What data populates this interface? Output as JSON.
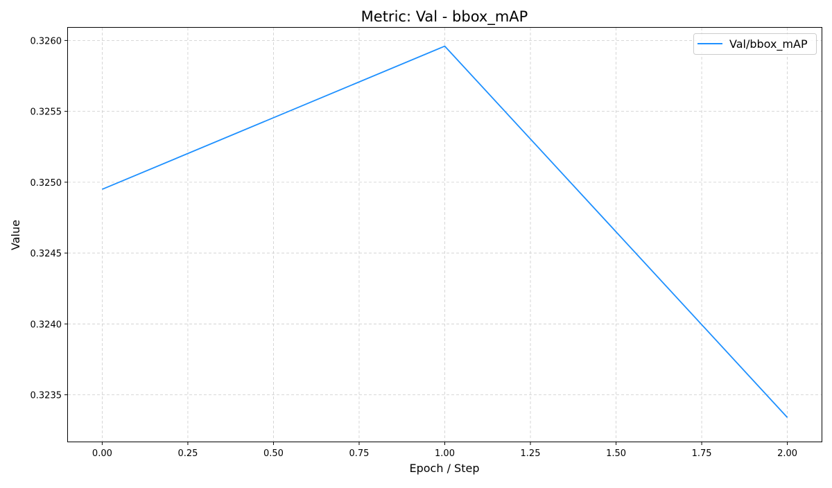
{
  "chart_data": {
    "type": "line",
    "title": "Metric: Val - bbox_mAP",
    "xlabel": "Epoch / Step",
    "ylabel": "Value",
    "xlim": [
      -0.1,
      2.1
    ],
    "ylim": [
      0.32317,
      0.32609
    ],
    "xticks": [
      0.0,
      0.25,
      0.5,
      0.75,
      1.0,
      1.25,
      1.5,
      1.75,
      2.0
    ],
    "xtick_labels": [
      "0.00",
      "0.25",
      "0.50",
      "0.75",
      "1.00",
      "1.25",
      "1.50",
      "1.75",
      "2.00"
    ],
    "yticks": [
      0.3235,
      0.324,
      0.3245,
      0.325,
      0.3255,
      0.326
    ],
    "ytick_labels": [
      "0.3235",
      "0.3240",
      "0.3245",
      "0.3250",
      "0.3255",
      "0.3260"
    ],
    "grid": true,
    "legend_position": "top-right",
    "series": [
      {
        "name": "Val/bbox_mAP",
        "color": "#1e90ff",
        "x": [
          0,
          1,
          2
        ],
        "y": [
          0.32495,
          0.32596,
          0.32334
        ]
      }
    ]
  }
}
